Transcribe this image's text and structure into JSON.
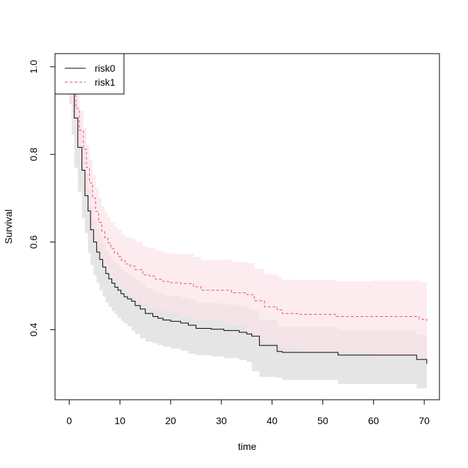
{
  "chart_data": {
    "type": "line",
    "title": "",
    "xlabel": "time",
    "ylabel": "Survival",
    "xlim": [
      -2.8,
      73
    ],
    "ylim": [
      0.24,
      1.03
    ],
    "xticks": [
      0,
      10,
      20,
      30,
      40,
      50,
      60,
      70
    ],
    "yticks": [
      0.4,
      0.6,
      0.8,
      1.0
    ],
    "xtick_labels": [
      "0",
      "10",
      "20",
      "30",
      "40",
      "50",
      "60",
      "70"
    ],
    "ytick_labels": [
      "0.4",
      "0.6",
      "0.8",
      "1.0"
    ],
    "legend_position": "top-left",
    "grid": false,
    "series": [
      {
        "name": "risk0",
        "color": "#000000",
        "band_color": "#e5e5e5",
        "line_style": "solid",
        "x": [
          0,
          0.5,
          1,
          1.7,
          2.5,
          3.1,
          3.7,
          4.2,
          4.8,
          5.4,
          6,
          6.6,
          7.2,
          7.8,
          8.4,
          9,
          9.6,
          10.2,
          10.8,
          11.5,
          12.3,
          13,
          14,
          15,
          16.5,
          17.5,
          18.5,
          20,
          22,
          23.5,
          25,
          28,
          30.5,
          33.5,
          35,
          36,
          37.5,
          41,
          42,
          53,
          68.5,
          70.5
        ],
        "y": [
          1.0,
          0.94,
          0.883,
          0.816,
          0.764,
          0.706,
          0.671,
          0.628,
          0.6,
          0.577,
          0.56,
          0.543,
          0.528,
          0.516,
          0.506,
          0.497,
          0.49,
          0.482,
          0.475,
          0.47,
          0.465,
          0.455,
          0.447,
          0.437,
          0.43,
          0.426,
          0.422,
          0.419,
          0.415,
          0.41,
          0.403,
          0.401,
          0.398,
          0.394,
          0.39,
          0.385,
          0.364,
          0.35,
          0.348,
          0.342,
          0.332,
          0.322
        ],
        "lower": [
          0.99,
          0.915,
          0.845,
          0.77,
          0.715,
          0.655,
          0.62,
          0.575,
          0.547,
          0.524,
          0.507,
          0.49,
          0.475,
          0.462,
          0.452,
          0.442,
          0.435,
          0.427,
          0.42,
          0.414,
          0.408,
          0.398,
          0.39,
          0.38,
          0.373,
          0.369,
          0.365,
          0.361,
          0.357,
          0.352,
          0.345,
          0.342,
          0.339,
          0.335,
          0.331,
          0.326,
          0.305,
          0.292,
          0.29,
          0.285,
          0.276,
          0.266
        ],
        "upper": [
          1.0,
          0.965,
          0.92,
          0.862,
          0.813,
          0.757,
          0.722,
          0.681,
          0.653,
          0.63,
          0.613,
          0.596,
          0.581,
          0.57,
          0.56,
          0.552,
          0.545,
          0.537,
          0.53,
          0.526,
          0.522,
          0.512,
          0.504,
          0.494,
          0.487,
          0.483,
          0.479,
          0.477,
          0.473,
          0.468,
          0.461,
          0.46,
          0.457,
          0.453,
          0.449,
          0.444,
          0.423,
          0.408,
          0.406,
          0.399,
          0.388,
          0.378
        ]
      },
      {
        "name": "risk1",
        "color": "#df536b",
        "band_color": "#fbe3e8",
        "line_style": "dashed",
        "x": [
          0,
          0.6,
          1.3,
          2,
          2.8,
          3.4,
          4,
          4.6,
          5.2,
          5.8,
          6.4,
          7,
          7.6,
          8.2,
          8.9,
          9.6,
          10.3,
          11,
          12,
          13,
          14.5,
          15.8,
          17,
          18.5,
          20,
          22,
          24.5,
          26,
          30,
          32,
          35,
          36.5,
          38.5,
          41,
          42,
          45,
          52.5,
          60,
          69,
          70.5
        ],
        "y": [
          1.0,
          0.955,
          0.905,
          0.855,
          0.812,
          0.77,
          0.735,
          0.7,
          0.67,
          0.645,
          0.625,
          0.61,
          0.598,
          0.585,
          0.575,
          0.567,
          0.558,
          0.55,
          0.545,
          0.537,
          0.525,
          0.522,
          0.515,
          0.51,
          0.507,
          0.505,
          0.498,
          0.49,
          0.49,
          0.484,
          0.48,
          0.466,
          0.452,
          0.445,
          0.437,
          0.435,
          0.43,
          0.43,
          0.424,
          0.42
        ],
        "lower": [
          0.985,
          0.925,
          0.865,
          0.81,
          0.765,
          0.72,
          0.683,
          0.647,
          0.616,
          0.59,
          0.569,
          0.553,
          0.54,
          0.526,
          0.515,
          0.506,
          0.497,
          0.488,
          0.482,
          0.474,
          0.461,
          0.458,
          0.45,
          0.445,
          0.441,
          0.438,
          0.43,
          0.421,
          0.42,
          0.413,
          0.408,
          0.393,
          0.378,
          0.37,
          0.36,
          0.357,
          0.35,
          0.348,
          0.34,
          0.332
        ],
        "upper": [
          1.0,
          0.985,
          0.945,
          0.9,
          0.86,
          0.82,
          0.787,
          0.753,
          0.724,
          0.7,
          0.681,
          0.667,
          0.656,
          0.644,
          0.635,
          0.628,
          0.619,
          0.612,
          0.608,
          0.6,
          0.589,
          0.586,
          0.58,
          0.575,
          0.573,
          0.572,
          0.566,
          0.559,
          0.56,
          0.555,
          0.552,
          0.539,
          0.526,
          0.52,
          0.514,
          0.513,
          0.51,
          0.512,
          0.508,
          0.508
        ]
      }
    ]
  }
}
